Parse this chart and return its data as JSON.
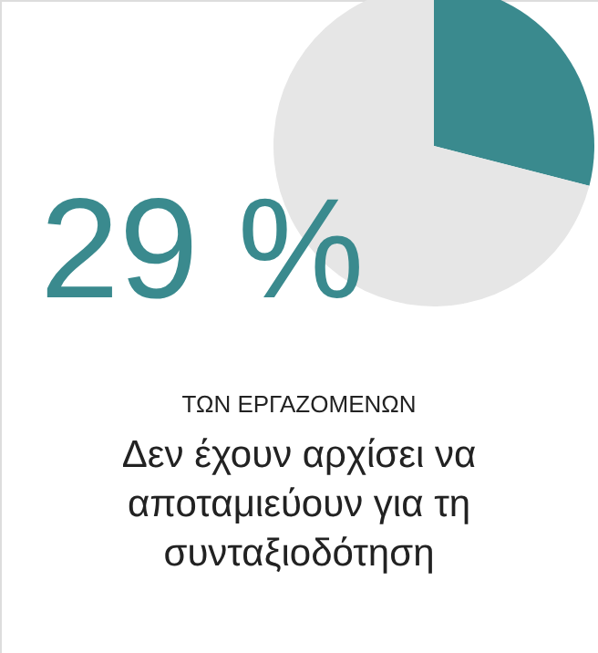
{
  "chart_data": {
    "type": "pie",
    "title": "Δεν έχουν αρχίσει να αποταμιεύουν για τη συνταξιοδότηση",
    "subtitle": "ΤΩΝ ΕΡΓΑΖΟΜΕΝΩΝ",
    "categories": [
      null,
      null
    ],
    "values": [
      29,
      71
    ],
    "colors": [
      "#3a8a8e",
      "#e6e6e6"
    ],
    "annotations": [
      "29 %"
    ]
  }
}
